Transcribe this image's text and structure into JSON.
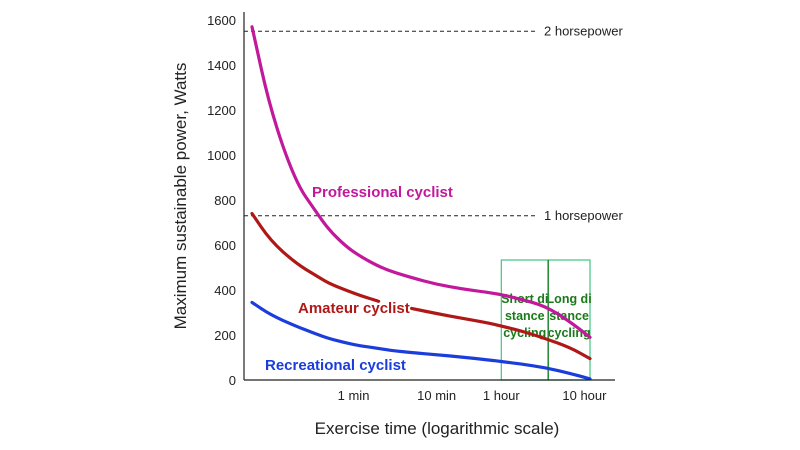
{
  "chart_data": {
    "type": "line",
    "xlabel": "Exercise time (logarithmic scale)",
    "ylabel": "Maximum sustainable power, Watts",
    "x_scale": "log",
    "ylim": [
      0,
      1600
    ],
    "y_ticks": [
      0,
      200,
      400,
      600,
      800,
      1000,
      1200,
      1400,
      1600
    ],
    "x_ticks": [
      {
        "label": "1 min",
        "minutes": 1
      },
      {
        "label": "10 min",
        "minutes": 10
      },
      {
        "label": "1 hour",
        "minutes": 60
      },
      {
        "label": "10 hour",
        "minutes": 600
      }
    ],
    "reference_lines": [
      {
        "label": "2 horsepower",
        "y": 1550
      },
      {
        "label": "1 horsepower",
        "y": 730
      }
    ],
    "series": [
      {
        "name": "Professional cyclist",
        "color": "#c2189b",
        "x": [
          0.06,
          0.1,
          0.2,
          0.35,
          0.5,
          0.8,
          1.2,
          2,
          3,
          5,
          10,
          20,
          40,
          60,
          100,
          200,
          400,
          700
        ],
        "y": [
          1570,
          1200,
          880,
          750,
          670,
          595,
          550,
          505,
          480,
          455,
          425,
          405,
          390,
          380,
          360,
          330,
          260,
          190
        ]
      },
      {
        "name": "Amateur cyclist",
        "color": "#b01818",
        "x": [
          0.06,
          0.1,
          0.2,
          0.35,
          0.5,
          0.8,
          1.2,
          2,
          3,
          5,
          10,
          20,
          40,
          60,
          100,
          200,
          400,
          700
        ],
        "y": [
          740,
          620,
          520,
          465,
          430,
          400,
          375,
          350,
          335,
          318,
          295,
          275,
          255,
          240,
          220,
          185,
          145,
          95
        ]
      },
      {
        "name": "Recreational cyclist",
        "color": "#1a3ddb",
        "x": [
          0.06,
          0.1,
          0.2,
          0.35,
          0.5,
          0.8,
          1.2,
          2,
          3,
          5,
          10,
          20,
          40,
          60,
          100,
          200,
          400,
          700
        ],
        "y": [
          345,
          290,
          240,
          205,
          185,
          165,
          152,
          140,
          130,
          122,
          112,
          102,
          90,
          82,
          72,
          55,
          30,
          5
        ]
      }
    ],
    "regions": [
      {
        "label_lines": [
          "Short di",
          "stance",
          "cycling"
        ],
        "x_from": 60,
        "x_to": 220
      },
      {
        "label_lines": [
          "Long di",
          "stance",
          "cycling"
        ],
        "x_from": 220,
        "x_to": 700
      }
    ],
    "grid": false,
    "legend": "none",
    "colors": {
      "region": "#4fc98a",
      "region_text": "#1a7a1a",
      "reference": "#222222"
    }
  }
}
